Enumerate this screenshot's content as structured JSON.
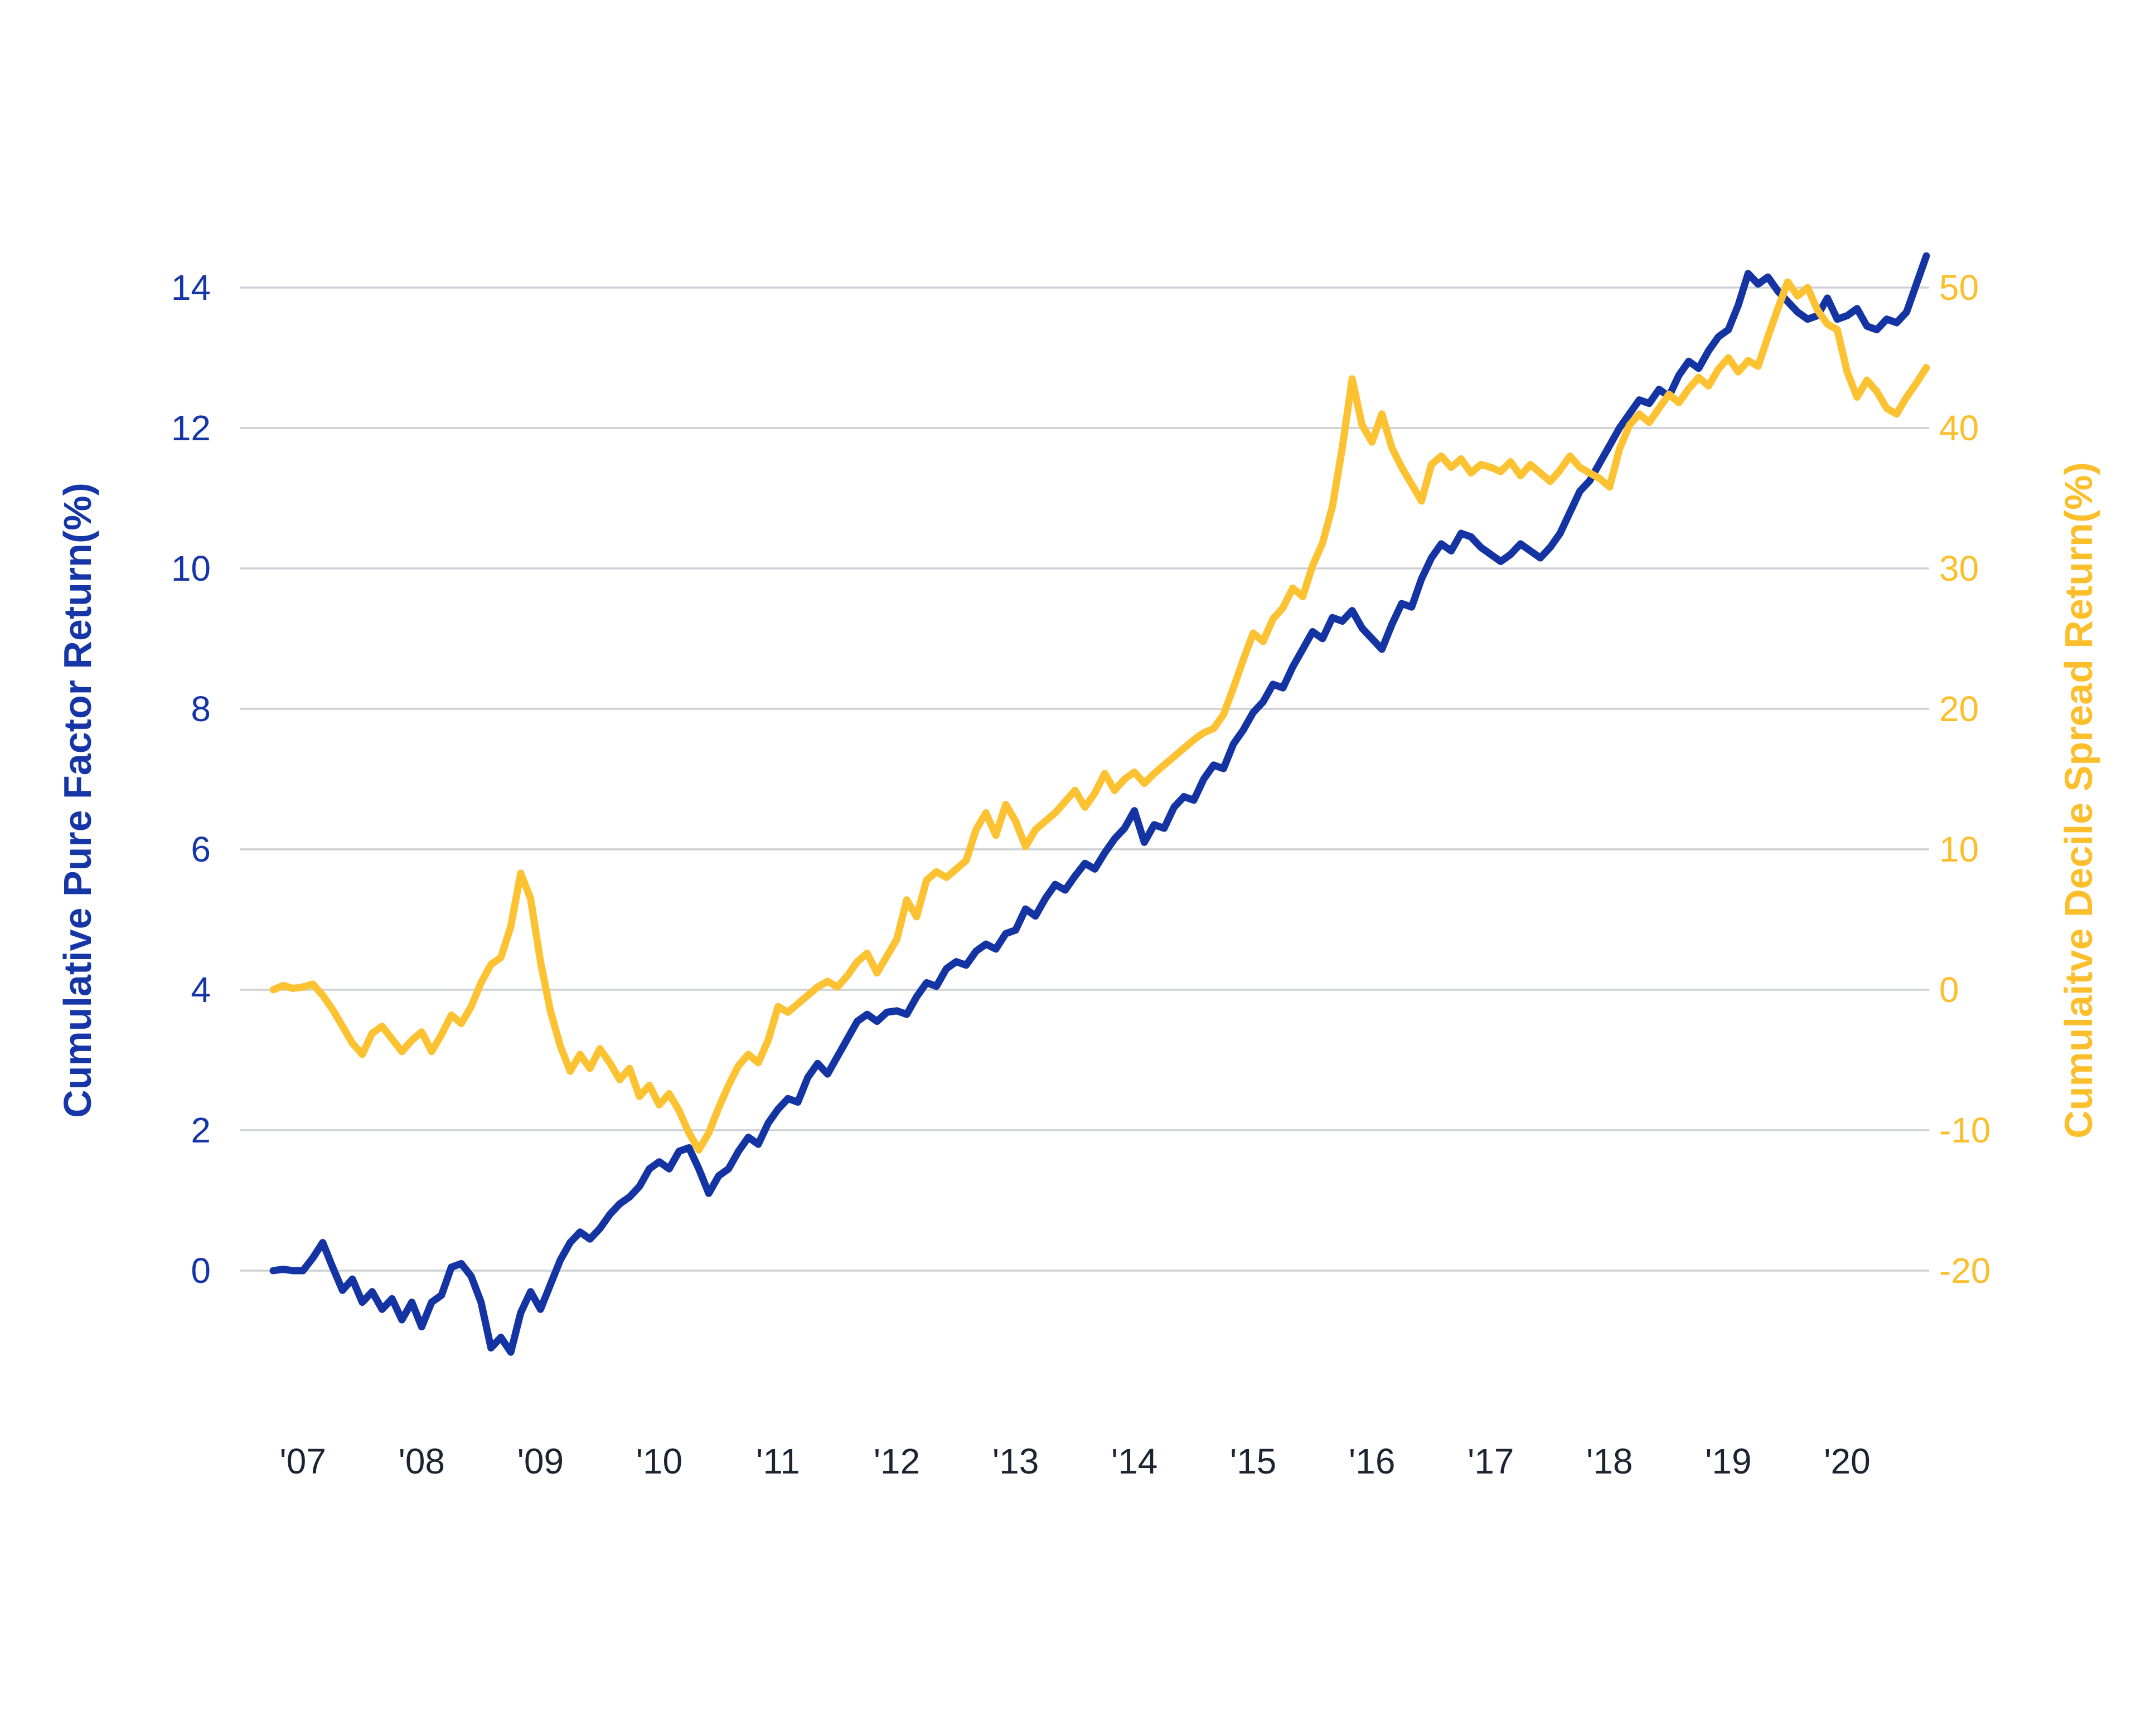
{
  "chart_data": {
    "type": "line",
    "background": "#FFFFFF",
    "grid": true,
    "grid_color": "#CDD0D4",
    "legend_position": "none",
    "x_axis": {
      "tick_labels": [
        "'07",
        "'08",
        "'09",
        "'10",
        "'11",
        "'12",
        "'13",
        "'14",
        "'15",
        "'16",
        "'17",
        "'18",
        "'19",
        "'20"
      ],
      "tick_years": [
        2007,
        2008,
        2009,
        2010,
        2011,
        2012,
        2013,
        2014,
        2015,
        2016,
        2017,
        2018,
        2019,
        2020
      ],
      "label_color": "#1B2430"
    },
    "left_axis": {
      "label": "Cumulative Pure Factor Return(%)",
      "ticks": [
        0,
        2,
        4,
        6,
        8,
        10,
        12,
        14
      ],
      "range": [
        -1.6,
        15.0
      ],
      "color": "#1636A8"
    },
    "right_axis": {
      "label": "Cumulaitve Decile Spread Return(%)",
      "ticks": [
        50,
        40,
        30,
        20,
        10,
        0,
        -10,
        -20
      ],
      "range": [
        -28,
        55
      ],
      "color": "#FCBF2B"
    },
    "series": [
      {
        "name": "Cumulative Pure Factor Return(%)",
        "axis": "left",
        "color": "#1434A4",
        "start_year_fraction": 2006.75,
        "frequency": "monthly",
        "values": [
          0.0,
          0.02,
          0.0,
          0.0,
          0.18,
          0.4,
          0.05,
          -0.28,
          -0.12,
          -0.45,
          -0.3,
          -0.55,
          -0.4,
          -0.7,
          -0.45,
          -0.8,
          -0.45,
          -0.35,
          0.05,
          0.1,
          -0.08,
          -0.45,
          -1.1,
          -0.95,
          -1.16,
          -0.6,
          -0.3,
          -0.55,
          -0.2,
          0.15,
          0.4,
          0.55,
          0.45,
          0.6,
          0.8,
          0.95,
          1.05,
          1.2,
          1.45,
          1.55,
          1.45,
          1.7,
          1.75,
          1.45,
          1.1,
          1.35,
          1.45,
          1.7,
          1.9,
          1.8,
          2.1,
          2.3,
          2.45,
          2.4,
          2.75,
          2.95,
          2.8,
          3.05,
          3.3,
          3.55,
          3.65,
          3.55,
          3.68,
          3.7,
          3.65,
          3.9,
          4.1,
          4.05,
          4.3,
          4.4,
          4.35,
          4.55,
          4.65,
          4.58,
          4.8,
          4.85,
          5.15,
          5.05,
          5.3,
          5.5,
          5.42,
          5.62,
          5.8,
          5.72,
          5.95,
          6.15,
          6.3,
          6.55,
          6.1,
          6.35,
          6.3,
          6.6,
          6.75,
          6.7,
          7.0,
          7.2,
          7.15,
          7.5,
          7.7,
          7.95,
          8.1,
          8.35,
          8.3,
          8.6,
          8.85,
          9.1,
          9.0,
          9.3,
          9.25,
          9.4,
          9.15,
          9.0,
          8.85,
          9.2,
          9.5,
          9.45,
          9.85,
          10.15,
          10.35,
          10.25,
          10.5,
          10.45,
          10.3,
          10.2,
          10.1,
          10.2,
          10.35,
          10.25,
          10.15,
          10.3,
          10.5,
          10.8,
          11.1,
          11.25,
          11.5,
          11.75,
          12.0,
          12.2,
          12.4,
          12.35,
          12.55,
          12.45,
          12.75,
          12.95,
          12.85,
          13.1,
          13.3,
          13.4,
          13.75,
          14.2,
          14.05,
          14.15,
          13.95,
          13.8,
          13.65,
          13.55,
          13.6,
          13.85,
          13.55,
          13.6,
          13.7,
          13.45,
          13.4,
          13.55,
          13.5,
          13.65,
          14.05,
          14.45
        ]
      },
      {
        "name": "Cumulaitve Decile Spread Return(%)",
        "axis": "right",
        "color": "#FCC231",
        "start_year_fraction": 2006.75,
        "frequency": "monthly",
        "values": [
          0.0,
          0.3,
          0.1,
          0.2,
          0.4,
          -0.4,
          -1.4,
          -2.6,
          -3.8,
          -4.6,
          -3.1,
          -2.6,
          -3.5,
          -4.4,
          -3.6,
          -3.0,
          -4.4,
          -3.2,
          -1.8,
          -2.4,
          -1.2,
          0.5,
          1.8,
          2.3,
          4.5,
          8.3,
          6.5,
          2.0,
          -1.5,
          -4.0,
          -5.8,
          -4.6,
          -5.6,
          -4.2,
          -5.2,
          -6.4,
          -5.6,
          -7.6,
          -6.8,
          -8.2,
          -7.4,
          -8.6,
          -10.2,
          -11.4,
          -10.2,
          -8.4,
          -6.8,
          -5.4,
          -4.6,
          -5.2,
          -3.6,
          -1.2,
          -1.6,
          -1.0,
          -0.4,
          0.2,
          0.6,
          0.2,
          1.0,
          2.0,
          2.6,
          1.2,
          2.4,
          3.6,
          6.4,
          5.2,
          7.8,
          8.4,
          8.0,
          8.6,
          9.2,
          11.4,
          12.6,
          11.0,
          13.2,
          12.0,
          10.2,
          11.4,
          12.0,
          12.6,
          13.4,
          14.2,
          13.0,
          14.0,
          15.4,
          14.2,
          15.0,
          15.5,
          14.7,
          15.4,
          16.0,
          16.6,
          17.2,
          17.8,
          18.3,
          18.6,
          19.6,
          21.5,
          23.5,
          25.4,
          24.8,
          26.4,
          27.2,
          28.6,
          28.0,
          30.2,
          31.8,
          34.4,
          38.6,
          43.5,
          40.2,
          39.0,
          41.0,
          38.6,
          37.2,
          36.0,
          34.8,
          37.4,
          38.0,
          37.2,
          37.8,
          36.8,
          37.4,
          37.2,
          36.9,
          37.6,
          36.6,
          37.4,
          36.8,
          36.2,
          37.0,
          38.0,
          37.2,
          36.8,
          36.4,
          35.8,
          38.5,
          40.2,
          41.0,
          40.4,
          41.4,
          42.4,
          41.8,
          42.8,
          43.6,
          43.0,
          44.2,
          45.0,
          44.0,
          44.8,
          44.4,
          46.5,
          48.5,
          50.4,
          49.4,
          50.0,
          48.4,
          47.4,
          47.0,
          44.0,
          42.2,
          43.4,
          42.6,
          41.4,
          41.0,
          42.2,
          43.2,
          44.3
        ]
      }
    ]
  }
}
